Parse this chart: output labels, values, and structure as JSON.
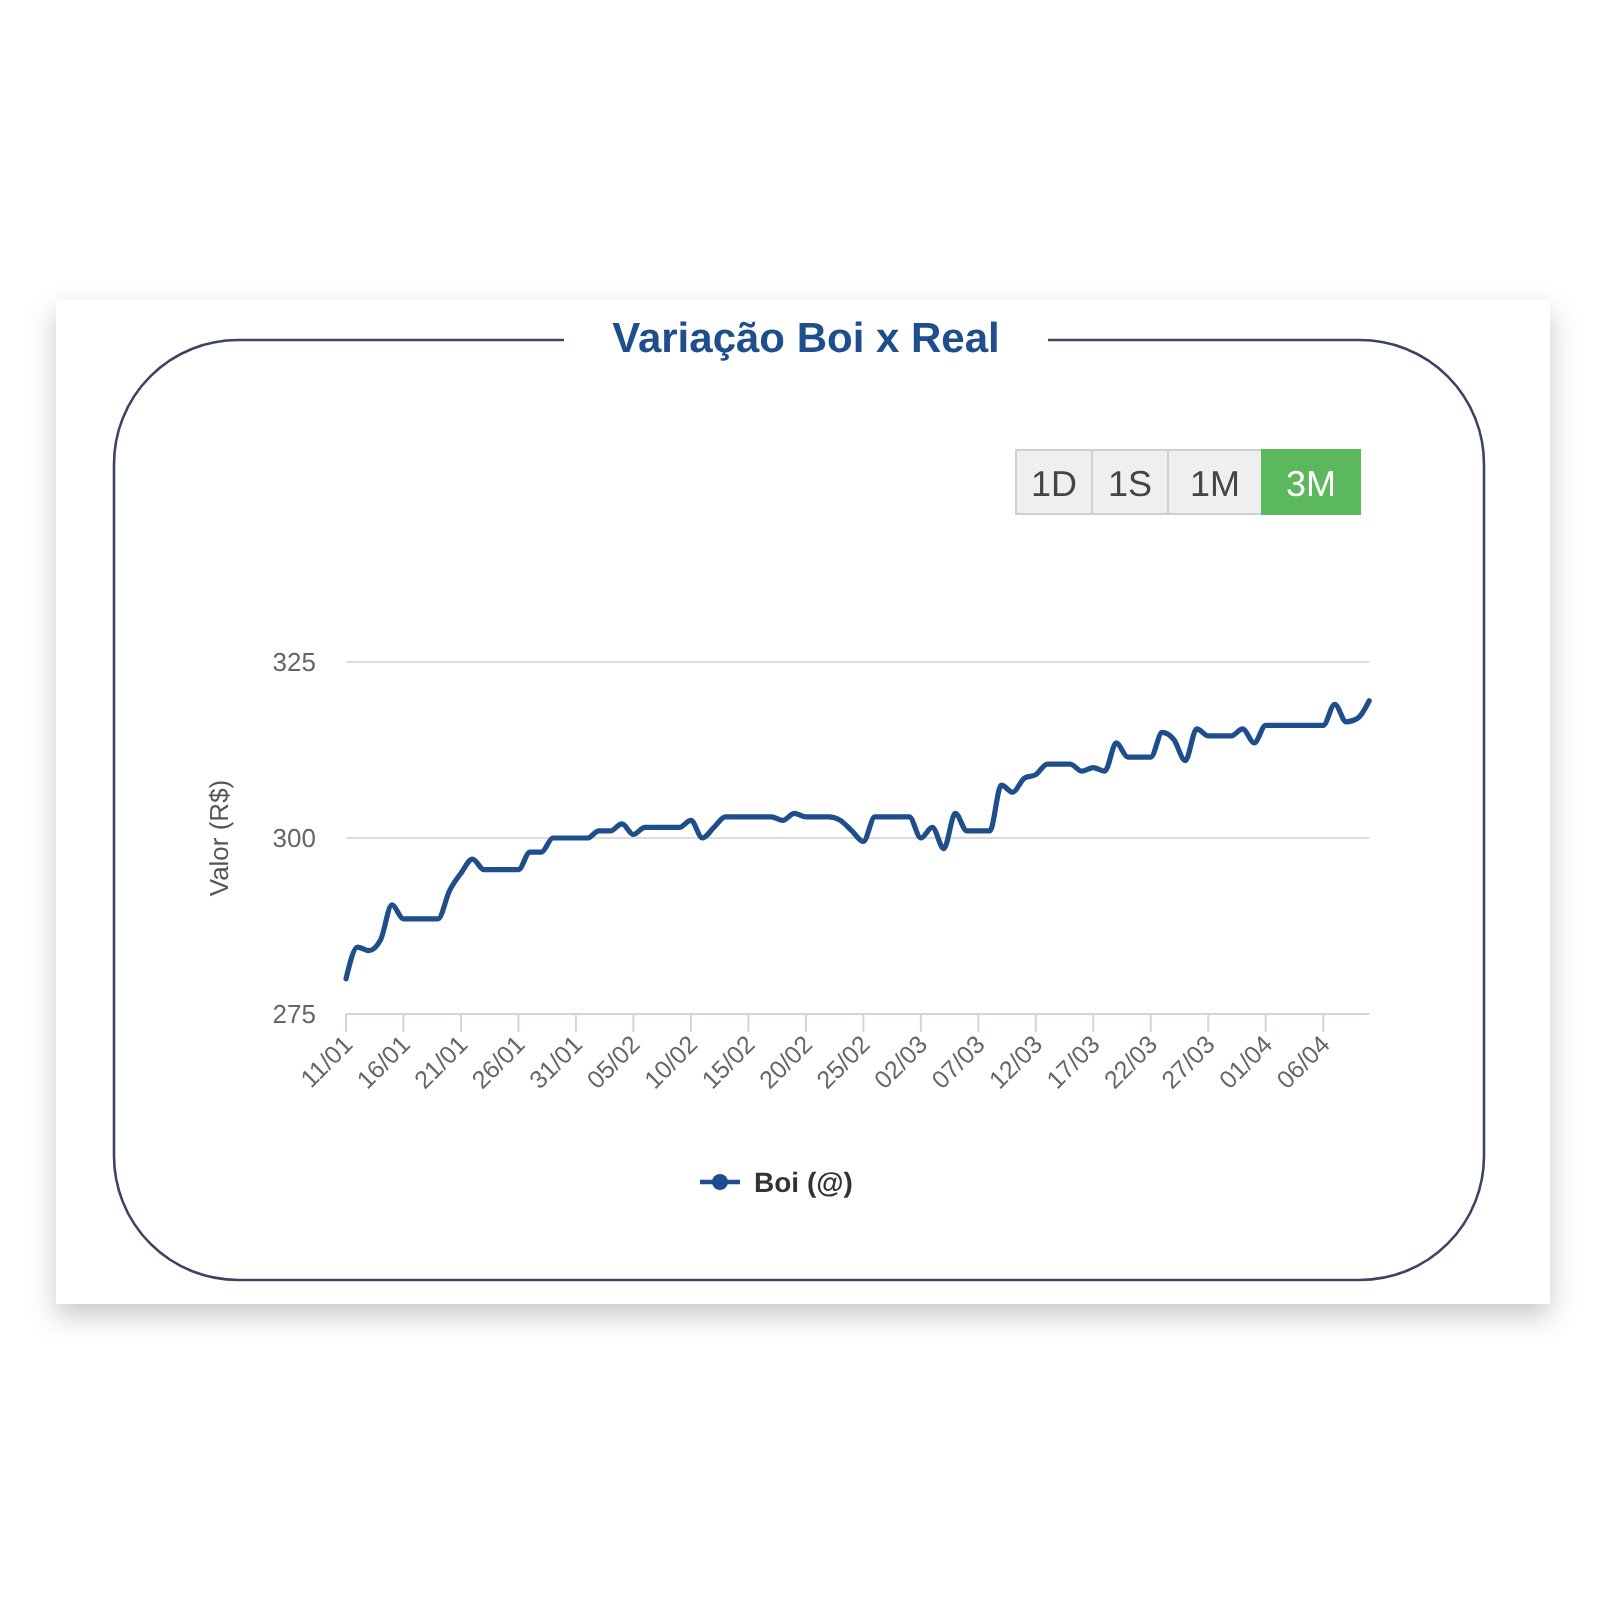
{
  "chart_data": {
    "type": "line",
    "title": "Variação Boi x Real",
    "ylabel": "Valor (R$)",
    "x": [
      "--01-11",
      "--01-12",
      "--01-13",
      "--01-14",
      "--01-15",
      "--01-16",
      "--01-17",
      "--01-18",
      "--01-19",
      "--01-20",
      "--01-21",
      "--01-22",
      "--01-23",
      "--01-24",
      "--01-25",
      "--01-26",
      "--01-27",
      "--01-28",
      "--01-29",
      "--01-30",
      "--01-31",
      "--02-01",
      "--02-02",
      "--02-03",
      "--02-04",
      "--02-05",
      "--02-06",
      "--02-07",
      "--02-08",
      "--02-09",
      "--02-10",
      "--02-11",
      "--02-12",
      "--02-13",
      "--02-14",
      "--02-15",
      "--02-16",
      "--02-17",
      "--02-18",
      "--02-19",
      "--02-20",
      "--02-21",
      "--02-22",
      "--02-23",
      "--02-24",
      "--02-25",
      "--02-26",
      "--02-27",
      "--02-28",
      "--03-01",
      "--03-02",
      "--03-03",
      "--03-04",
      "--03-05",
      "--03-06",
      "--03-07",
      "--03-08",
      "--03-09",
      "--03-10",
      "--03-11",
      "--03-12",
      "--03-13",
      "--03-14",
      "--03-15",
      "--03-16",
      "--03-17",
      "--03-18",
      "--03-19",
      "--03-20",
      "--03-21",
      "--03-22",
      "--03-23",
      "--03-24",
      "--03-25",
      "--03-26",
      "--03-27",
      "--03-28",
      "--03-29",
      "--03-30",
      "--03-31",
      "--04-01",
      "--04-02",
      "--04-03",
      "--04-04",
      "--04-05",
      "--04-06",
      "--04-07",
      "--04-08",
      "--04-09",
      "--04-10"
    ],
    "xlim": [
      "--01-11",
      "--04-10"
    ],
    "xticks": [
      {
        "value": "--01-11",
        "label": "11/01"
      },
      {
        "value": "--01-16",
        "label": "16/01"
      },
      {
        "value": "--01-21",
        "label": "21/01"
      },
      {
        "value": "--01-26",
        "label": "26/01"
      },
      {
        "value": "--01-31",
        "label": "31/01"
      },
      {
        "value": "--02-05",
        "label": "05/02"
      },
      {
        "value": "--02-10",
        "label": "10/02"
      },
      {
        "value": "--02-15",
        "label": "15/02"
      },
      {
        "value": "--02-20",
        "label": "20/02"
      },
      {
        "value": "--02-25",
        "label": "25/02"
      },
      {
        "value": "--03-02",
        "label": "02/03"
      },
      {
        "value": "--03-07",
        "label": "07/03"
      },
      {
        "value": "--03-12",
        "label": "12/03"
      },
      {
        "value": "--03-17",
        "label": "17/03"
      },
      {
        "value": "--03-22",
        "label": "22/03"
      },
      {
        "value": "--03-27",
        "label": "27/03"
      },
      {
        "value": "--04-01",
        "label": "01/04"
      },
      {
        "value": "--04-06",
        "label": "06/04"
      }
    ],
    "ylim": [
      275,
      325
    ],
    "yticks": [
      275,
      300,
      325
    ],
    "grid": "y",
    "legend": "bottom",
    "series": [
      {
        "name": "Boi (@)",
        "color": "#1f4e8c",
        "values": [
          280,
          284.5,
          284,
          285.5,
          290.5,
          288.5,
          288.5,
          288.5,
          288.5,
          292.5,
          295,
          297,
          295.5,
          295.5,
          295.5,
          295.5,
          298,
          298,
          300,
          300,
          300,
          300,
          301,
          301,
          302,
          300.5,
          301.5,
          301.5,
          301.5,
          301.5,
          302.5,
          300,
          301.5,
          303,
          303,
          303,
          303,
          303,
          302.5,
          303.5,
          303,
          303,
          303,
          302.5,
          301,
          299.5,
          303,
          303,
          303,
          303,
          300,
          301.5,
          298.5,
          303.5,
          301,
          301,
          301,
          307.5,
          306.5,
          308.5,
          309,
          310.5,
          310.5,
          310.5,
          309.5,
          310,
          309.5,
          313.5,
          311.5,
          311.5,
          311.5,
          315,
          314,
          311,
          315.5,
          314.5,
          314.5,
          314.5,
          315.5,
          313.5,
          316,
          316,
          316,
          316,
          316,
          316,
          319,
          316.5,
          317,
          319.5
        ]
      }
    ],
    "annotations": [
      "1D",
      "1S",
      "1M",
      "3M"
    ]
  }
}
